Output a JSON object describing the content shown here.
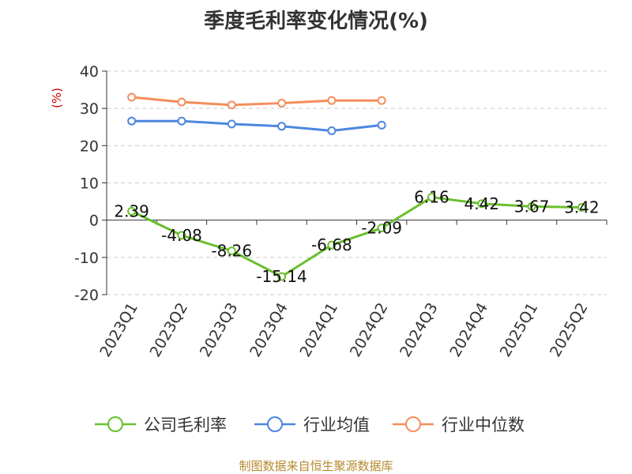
{
  "chart_data": {
    "type": "line",
    "title": "季度毛利率变化情况(%)",
    "ylabel": "(%)",
    "categories": [
      "2023Q1",
      "2023Q2",
      "2023Q3",
      "2023Q4",
      "2024Q1",
      "2024Q2",
      "2024Q3",
      "2024Q4",
      "2025Q1",
      "2025Q2"
    ],
    "ylim": [
      -20,
      40
    ],
    "yticks": [
      -20,
      -10,
      0,
      10,
      20,
      30,
      40
    ],
    "grid": true,
    "legend_position": "bottom",
    "series": [
      {
        "name": "公司毛利率",
        "color": "#6abf2f",
        "values": [
          2.39,
          -4.08,
          -8.26,
          -15.14,
          -6.68,
          -2.09,
          6.16,
          4.42,
          3.67,
          3.42
        ],
        "labels": [
          "2.39",
          "-4.08",
          "-8.26",
          "-15.14",
          "-6.68",
          "-2.09",
          "6.16",
          "4.42",
          "3.67",
          "3.42"
        ],
        "show_labels": true
      },
      {
        "name": "行业均值",
        "color": "#4d86e0",
        "values": [
          26.6,
          26.6,
          25.8,
          25.2,
          24.0,
          25.5,
          null,
          null,
          null,
          null
        ],
        "show_labels": false
      },
      {
        "name": "行业中位数",
        "color": "#f58d5b",
        "values": [
          33.0,
          31.7,
          30.9,
          31.4,
          32.1,
          32.1,
          null,
          null,
          null,
          null
        ],
        "show_labels": false
      }
    ]
  },
  "source": "制图数据来自恒生聚源数据库"
}
